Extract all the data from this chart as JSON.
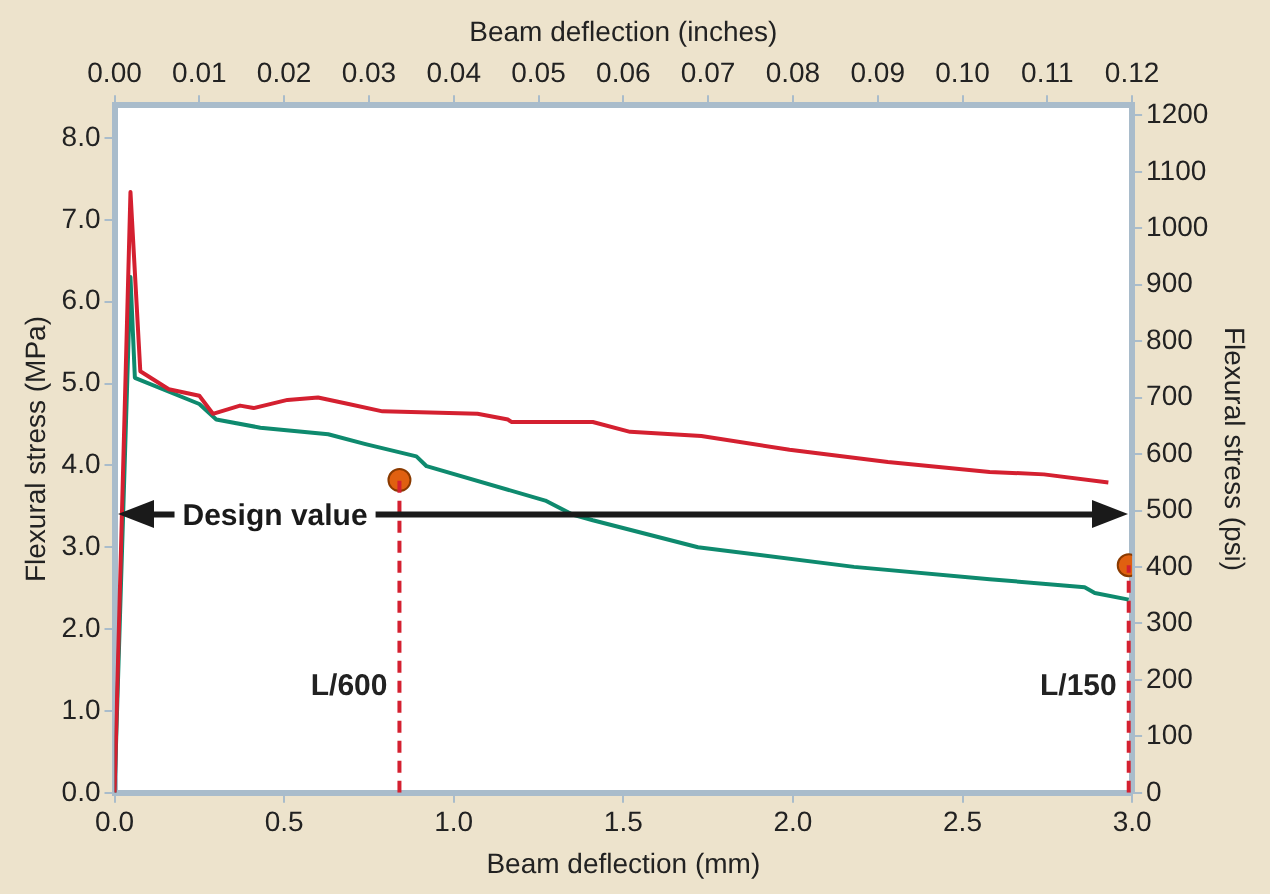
{
  "chart_data": {
    "type": "line",
    "xlabel": "Beam deflection (mm)",
    "x2label": "Beam deflection (inches)",
    "ylabel": "Flexural stress (MPa)",
    "y2label": "Flexural stress (psi)",
    "xlim": [
      0,
      3
    ],
    "xticks": [
      {
        "value": 0,
        "label": "0.0"
      },
      {
        "value": 0.5,
        "label": "0.5"
      },
      {
        "value": 1,
        "label": "1.0"
      },
      {
        "value": 1.5,
        "label": "1.5"
      },
      {
        "value": 2,
        "label": "2.0"
      },
      {
        "value": 2.5,
        "label": "2.5"
      },
      {
        "value": 3,
        "label": "3.0"
      }
    ],
    "x2lim": [
      0,
      0.12
    ],
    "x2ticks": [
      {
        "value": 0,
        "label": "0.00"
      },
      0.01,
      0.02,
      0.03,
      0.04,
      0.05,
      0.06,
      0.07,
      0.08,
      0.09,
      {
        "value": 0.1,
        "label": "0.10"
      },
      0.11,
      0.12
    ],
    "ylim": [
      0,
      8.4
    ],
    "yticks": [
      {
        "value": 0,
        "label": "0.0"
      },
      {
        "value": 1,
        "label": "1.0"
      },
      {
        "value": 2,
        "label": "2.0"
      },
      {
        "value": 3,
        "label": "3.0"
      },
      {
        "value": 4,
        "label": "4.0"
      },
      {
        "value": 5,
        "label": "5.0"
      },
      {
        "value": 6,
        "label": "6.0"
      },
      {
        "value": 7,
        "label": "7.0"
      },
      {
        "value": 8,
        "label": "8.0"
      }
    ],
    "y2lim": [
      0,
      1218
    ],
    "y2ticks": [
      0,
      100,
      200,
      300,
      400,
      500,
      600,
      700,
      800,
      900,
      1000,
      1100,
      1200
    ],
    "grid": false,
    "legend": false,
    "series": [
      {
        "color": "#d42030",
        "x": [
          0,
          0.047,
          0.076,
          0.16,
          0.25,
          0.29,
          0.37,
          0.41,
          0.51,
          0.6,
          0.69,
          0.79,
          1.07,
          1.16,
          1.17,
          1.41,
          1.52,
          1.73,
          1.99,
          2.28,
          2.58,
          2.74,
          2.93
        ],
        "values": [
          0,
          7.34,
          5.15,
          4.93,
          4.85,
          4.63,
          4.73,
          4.7,
          4.8,
          4.83,
          4.75,
          4.66,
          4.63,
          4.56,
          4.53,
          4.53,
          4.41,
          4.36,
          4.19,
          4.04,
          3.92,
          3.89,
          3.79
        ]
      },
      {
        "color": "#0e8a6e",
        "x": [
          0,
          0.047,
          0.06,
          0.25,
          0.3,
          0.43,
          0.63,
          0.74,
          0.89,
          0.92,
          1.27,
          1.35,
          1.41,
          1.72,
          2.18,
          2.58,
          2.86,
          2.89,
          2.99
        ],
        "values": [
          0,
          6.3,
          5.07,
          4.75,
          4.56,
          4.46,
          4.38,
          4.26,
          4.11,
          3.99,
          3.57,
          3.4,
          3.33,
          3,
          2.76,
          2.61,
          2.51,
          2.44,
          2.36
        ]
      },
      {
        "type": "line",
        "color": "#d42030",
        "line_style": "dashed",
        "marker": "none",
        "x": [
          0.84,
          0.84
        ],
        "values": [
          0,
          3.82
        ]
      },
      {
        "type": "line",
        "color": "#d42030",
        "line_style": "dashed",
        "marker": "none",
        "x": [
          2.99,
          2.99
        ],
        "values": [
          0,
          2.78
        ]
      },
      {
        "type": "scatter",
        "color": "#e06010",
        "marker": "circle",
        "x": [
          0.84,
          2.99
        ],
        "values": [
          3.82,
          2.78
        ]
      }
    ],
    "ref_lines": [
      {
        "axis": "y",
        "value": 3.4,
        "label": "Design value",
        "color": "#1a1a1a"
      }
    ],
    "annotations": [
      {
        "text": "L/600",
        "x": 0.84,
        "y": 1.3
      },
      {
        "text": "L/150",
        "x": 2.99,
        "y": 1.3
      }
    ]
  }
}
